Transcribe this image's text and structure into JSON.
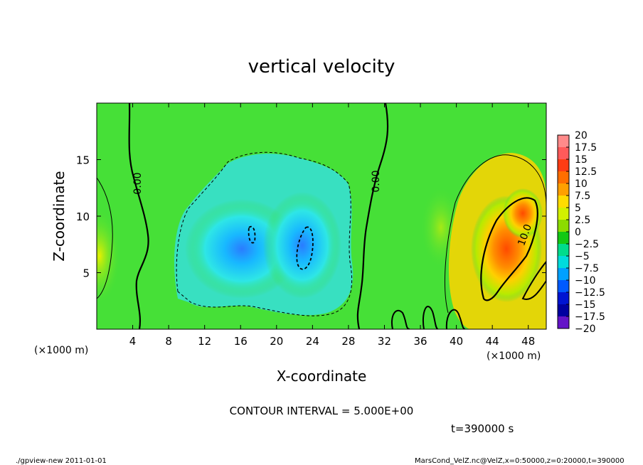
{
  "chart_data": {
    "type": "heatmap",
    "title": "vertical velocity",
    "xlabel": "X-coordinate",
    "ylabel": "Z-coordinate",
    "x_unit_label": "(×1000 m)",
    "x_unit_label_right": "(×1000 m)",
    "xlim": [
      0,
      50
    ],
    "ylim": [
      0,
      20
    ],
    "x_ticks": [
      4,
      8,
      12,
      16,
      20,
      24,
      28,
      32,
      36,
      40,
      44,
      48
    ],
    "y_ticks": [
      5,
      10,
      15
    ],
    "colorbar": {
      "ticks": [
        "20",
        "17.5",
        "15",
        "12.5",
        "10",
        "7.5",
        "5",
        "2.5",
        "0",
        "−2.5",
        "−5",
        "−7.5",
        "−10",
        "−12.5",
        "−15",
        "−17.5",
        "−20"
      ],
      "colors": [
        "#ff8a8a",
        "#ff5a5a",
        "#ff3c14",
        "#ff6e00",
        "#ffa000",
        "#ffdc00",
        "#d2f000",
        "#8cdc00",
        "#14c814",
        "#00dc8c",
        "#00dcdc",
        "#00a0ff",
        "#005aff",
        "#0014d2",
        "#0000a0",
        "#6414c8"
      ]
    },
    "contour_labels": [
      "0.00",
      "0.00",
      "10.0"
    ],
    "contour_interval_text": "CONTOUR INTERVAL = 5.000E+00",
    "time_text": "t=390000 s",
    "regions": [
      {
        "name": "updraft",
        "x_range": [
          41,
          50
        ],
        "z_range": [
          2,
          15
        ],
        "peak": 12.5
      },
      {
        "name": "downdraft",
        "x_range": [
          9,
          29
        ],
        "z_range": [
          2,
          16
        ],
        "min": -12.5
      }
    ]
  },
  "footer": {
    "left": "./gpview-new   2011-01-01",
    "right": "MarsCond_VelZ.nc@VelZ,x=0:50000,z=0:20000,t=390000"
  },
  "colors": {
    "background_field": "#3ee03a",
    "frame": "#000000"
  }
}
